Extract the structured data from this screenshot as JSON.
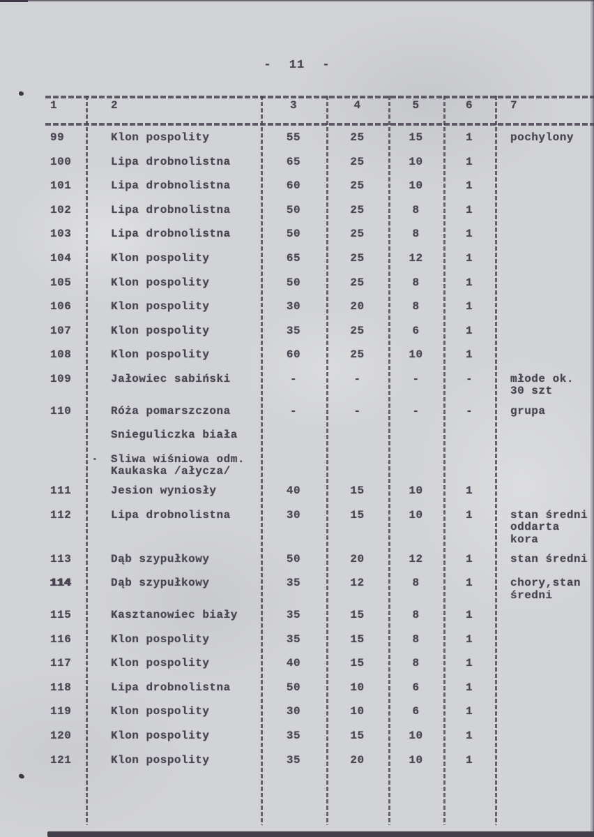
{
  "page": {
    "number": "- 11 -"
  },
  "colors": {
    "ink": "#4a4450",
    "paper": "#d2d3d6"
  },
  "table": {
    "headers": [
      "1",
      "2",
      "3",
      "4",
      "5",
      "6",
      "7"
    ],
    "rows": [
      {
        "no": "99",
        "name": "Klon pospolity",
        "c3": "55",
        "c4": "25",
        "c5": "15",
        "c6": "1",
        "notes": "pochylony"
      },
      {
        "no": "100",
        "name": "Lipa drobnolistna",
        "c3": "65",
        "c4": "25",
        "c5": "10",
        "c6": "1",
        "notes": ""
      },
      {
        "no": "101",
        "name": "Lipa drobnolistna",
        "c3": "60",
        "c4": "25",
        "c5": "10",
        "c6": "1",
        "notes": ""
      },
      {
        "no": "102",
        "name": "Lipa drobnolistna",
        "c3": "50",
        "c4": "25",
        "c5": "8",
        "c6": "1",
        "notes": ""
      },
      {
        "no": "103",
        "name": "Lipa drobnolistna",
        "c3": "50",
        "c4": "25",
        "c5": "8",
        "c6": "1",
        "notes": ""
      },
      {
        "no": "104",
        "name": "Klon pospolity",
        "c3": "65",
        "c4": "25",
        "c5": "12",
        "c6": "1",
        "notes": ""
      },
      {
        "no": "105",
        "name": "Klon pospolity",
        "c3": "50",
        "c4": "25",
        "c5": "8",
        "c6": "1",
        "notes": ""
      },
      {
        "no": "106",
        "name": "Klon pospolity",
        "c3": "30",
        "c4": "20",
        "c5": "8",
        "c6": "1",
        "notes": ""
      },
      {
        "no": "107",
        "name": "Klon pospolity",
        "c3": "35",
        "c4": "25",
        "c5": "6",
        "c6": "1",
        "notes": ""
      },
      {
        "no": "108",
        "name": "Klon pospolity",
        "c3": "60",
        "c4": "25",
        "c5": "10",
        "c6": "1",
        "notes": ""
      },
      {
        "no": "109",
        "name": "Jałowiec sabiński",
        "c3": "-",
        "c4": "-",
        "c5": "-",
        "c6": "-",
        "notes": "młode ok.\n30 szt"
      },
      {
        "no": "110",
        "name": "Róża pomarszczona",
        "c3": "-",
        "c4": "-",
        "c5": "-",
        "c6": "-",
        "notes": "grupa"
      },
      {
        "no": "",
        "name": "Snieguliczka biała",
        "c3": "",
        "c4": "",
        "c5": "",
        "c6": "",
        "notes": ""
      },
      {
        "no": "",
        "name": "Sliwa wiśniowa odm.\nKaukaska /ałycza/",
        "c3": "",
        "c4": "",
        "c5": "",
        "c6": "",
        "notes": ""
      },
      {
        "no": "111",
        "name": "Jesion wyniosły",
        "c3": "40",
        "c4": "15",
        "c5": "10",
        "c6": "1",
        "notes": ""
      },
      {
        "no": "112",
        "name": "Lipa drobnolistna",
        "c3": "30",
        "c4": "15",
        "c5": "10",
        "c6": "1",
        "notes": "stan średni\noddarta\nkora"
      },
      {
        "no": "113",
        "name": "Dąb szypułkowy",
        "c3": "50",
        "c4": "20",
        "c5": "12",
        "c6": "1",
        "notes": "stan średni"
      },
      {
        "no": "114",
        "name": "Dąb szypułkowy",
        "c3": "35",
        "c4": "12",
        "c5": "8",
        "c6": "1",
        "notes": "chory,stan\nśredni",
        "overstruck": true
      },
      {
        "no": "115",
        "name": "Kasztanowiec biały",
        "c3": "35",
        "c4": "15",
        "c5": "8",
        "c6": "1",
        "notes": ""
      },
      {
        "no": "116",
        "name": "Klon pospolity",
        "c3": "35",
        "c4": "15",
        "c5": "8",
        "c6": "1",
        "notes": ""
      },
      {
        "no": "117",
        "name": "Klon pospolity",
        "c3": "40",
        "c4": "15",
        "c5": "8",
        "c6": "1",
        "notes": ""
      },
      {
        "no": "118",
        "name": "Lipa drobnolistna",
        "c3": "50",
        "c4": "10",
        "c5": "6",
        "c6": "1",
        "notes": ""
      },
      {
        "no": "119",
        "name": "Klon pospolity",
        "c3": "30",
        "c4": "10",
        "c5": "6",
        "c6": "1",
        "notes": ""
      },
      {
        "no": "120",
        "name": "Klon pospolity",
        "c3": "35",
        "c4": "15",
        "c5": "10",
        "c6": "1",
        "notes": ""
      },
      {
        "no": "121",
        "name": "Klon pospolity",
        "c3": "35",
        "c4": "20",
        "c5": "10",
        "c6": "1",
        "notes": ""
      }
    ]
  }
}
